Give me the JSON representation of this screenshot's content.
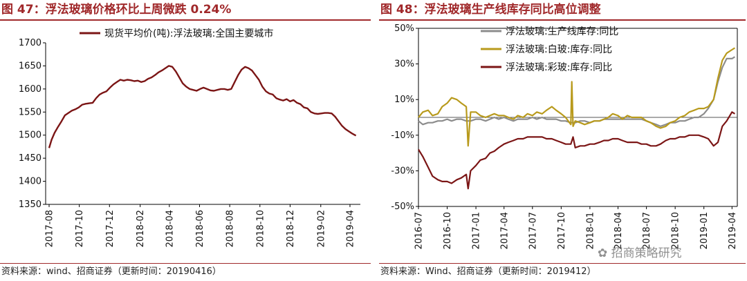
{
  "charts": {
    "left": {
      "title": "图 47：浮法玻璃价格环比上周微跌 0.24%",
      "source": "资料来源：wind、招商证券（更新时间：20190416）"
    },
    "right": {
      "title": "图 48：浮法玻璃生产线库存同比高位调整",
      "source": "资料来源：Wind、招商证券（更新时间：2019412）",
      "watermark": "招商策略研究"
    }
  },
  "chart_data": [
    {
      "type": "line",
      "title": "图 47：浮法玻璃价格环比上周微跌 0.24%",
      "ylim": [
        1350,
        1700
      ],
      "yticks": [
        1350,
        1400,
        1450,
        1500,
        1550,
        1600,
        1650,
        1700
      ],
      "xticks": [
        "2017-08",
        "2017-10",
        "2017-12",
        "2018-02",
        "2018-04",
        "2018-06",
        "2018-08",
        "2018-10",
        "2018-12",
        "2019-02",
        "2019-04"
      ],
      "grid": false,
      "legend": "top",
      "colors": {
        "series": "#7b1515"
      },
      "series": [
        {
          "name": "现货平均价(吨):浮法玻璃:全国主要城市",
          "x": [
            "2017-08-01",
            "2017-08-06",
            "2017-08-12",
            "2017-08-19",
            "2017-08-26",
            "2017-09-02",
            "2017-09-09",
            "2017-09-16",
            "2017-09-23",
            "2017-09-30",
            "2017-10-07",
            "2017-10-14",
            "2017-10-21",
            "2017-10-28",
            "2017-11-04",
            "2017-11-11",
            "2017-11-18",
            "2017-11-25",
            "2017-12-02",
            "2017-12-09",
            "2017-12-16",
            "2017-12-23",
            "2017-12-30",
            "2018-01-06",
            "2018-01-13",
            "2018-01-20",
            "2018-01-27",
            "2018-02-03",
            "2018-02-10",
            "2018-02-17",
            "2018-02-24",
            "2018-03-03",
            "2018-03-10",
            "2018-03-17",
            "2018-03-24",
            "2018-03-31",
            "2018-04-07",
            "2018-04-14",
            "2018-04-21",
            "2018-04-28",
            "2018-05-05",
            "2018-05-12",
            "2018-05-19",
            "2018-05-26",
            "2018-06-02",
            "2018-06-09",
            "2018-06-16",
            "2018-06-23",
            "2018-06-30",
            "2018-07-07",
            "2018-07-14",
            "2018-07-21",
            "2018-07-28",
            "2018-08-04",
            "2018-08-11",
            "2018-08-18",
            "2018-08-25",
            "2018-09-01",
            "2018-09-08",
            "2018-09-15",
            "2018-09-22",
            "2018-09-29",
            "2018-10-06",
            "2018-10-13",
            "2018-10-20",
            "2018-10-27",
            "2018-11-03",
            "2018-11-10",
            "2018-11-17",
            "2018-11-24",
            "2018-12-01",
            "2018-12-08",
            "2018-12-15",
            "2018-12-22",
            "2018-12-29",
            "2019-01-05",
            "2019-01-12",
            "2019-01-19",
            "2019-01-26",
            "2019-02-02",
            "2019-02-09",
            "2019-02-16",
            "2019-02-23",
            "2019-03-02",
            "2019-03-09",
            "2019-03-16",
            "2019-03-23",
            "2019-03-30",
            "2019-04-06",
            "2019-04-13"
          ],
          "values": [
            1472,
            1490,
            1505,
            1518,
            1530,
            1543,
            1548,
            1553,
            1556,
            1560,
            1566,
            1568,
            1569,
            1570,
            1580,
            1588,
            1592,
            1595,
            1603,
            1610,
            1615,
            1620,
            1618,
            1620,
            1619,
            1617,
            1618,
            1615,
            1617,
            1622,
            1625,
            1630,
            1636,
            1640,
            1645,
            1650,
            1648,
            1638,
            1625,
            1612,
            1605,
            1600,
            1598,
            1596,
            1600,
            1603,
            1600,
            1597,
            1596,
            1598,
            1600,
            1600,
            1598,
            1600,
            1615,
            1630,
            1642,
            1648,
            1645,
            1640,
            1630,
            1620,
            1605,
            1595,
            1590,
            1588,
            1580,
            1577,
            1575,
            1578,
            1573,
            1576,
            1570,
            1567,
            1560,
            1558,
            1550,
            1547,
            1546,
            1547,
            1548,
            1548,
            1547,
            1540,
            1530,
            1520,
            1513,
            1508,
            1503,
            1499
          ]
        }
      ]
    },
    {
      "type": "line",
      "title": "图 48：浮法玻璃生产线库存同比高位调整",
      "ylim": [
        -50,
        50
      ],
      "yticks": [
        -50,
        -30,
        -10,
        10,
        30,
        50
      ],
      "ytick_format": "percent",
      "xticks": [
        "2016-07",
        "2016-10",
        "2017-01",
        "2017-04",
        "2017-07",
        "2017-10",
        "2018-01",
        "2018-04",
        "2018-07",
        "2018-10",
        "2019-01",
        "2019-04"
      ],
      "reference_line": 0,
      "grid": false,
      "legend": "top",
      "colors": {
        "total": "#8c8c8c",
        "white": "#b89a1c",
        "color": "#7b1515"
      },
      "series": [
        {
          "name": "浮法玻璃:生产线库存:同比",
          "color_key": "total",
          "x": [
            "2016-07-01",
            "2016-07-15",
            "2016-08-01",
            "2016-08-15",
            "2016-09-01",
            "2016-09-15",
            "2016-10-01",
            "2016-10-15",
            "2016-11-01",
            "2016-11-15",
            "2016-12-01",
            "2016-12-15",
            "2017-01-01",
            "2017-01-15",
            "2017-02-01",
            "2017-02-15",
            "2017-03-01",
            "2017-03-15",
            "2017-04-01",
            "2017-04-15",
            "2017-05-01",
            "2017-05-15",
            "2017-06-01",
            "2017-06-15",
            "2017-07-01",
            "2017-07-15",
            "2017-08-01",
            "2017-08-15",
            "2017-09-01",
            "2017-09-15",
            "2017-10-01",
            "2017-10-15",
            "2017-11-01",
            "2017-11-15",
            "2017-12-01",
            "2017-12-15",
            "2018-01-01",
            "2018-01-15",
            "2018-02-01",
            "2018-02-15",
            "2018-03-01",
            "2018-03-15",
            "2018-04-01",
            "2018-04-15",
            "2018-05-01",
            "2018-05-15",
            "2018-06-01",
            "2018-06-15",
            "2018-07-01",
            "2018-07-15",
            "2018-08-01",
            "2018-08-15",
            "2018-09-01",
            "2018-09-15",
            "2018-10-01",
            "2018-10-15",
            "2018-11-01",
            "2018-11-15",
            "2018-12-01",
            "2018-12-15",
            "2019-01-01",
            "2019-01-15",
            "2019-02-01",
            "2019-02-15",
            "2019-03-01",
            "2019-03-15",
            "2019-04-01",
            "2019-04-10"
          ],
          "values": [
            -2,
            -4,
            -3,
            -3,
            -2,
            -2,
            -1,
            -2,
            -1,
            -1,
            -2,
            -2,
            -1,
            -1,
            -2,
            -1,
            0,
            -1,
            0,
            -1,
            -2,
            -1,
            -1,
            -1,
            0,
            -1,
            0,
            -1,
            -1,
            -1,
            -2,
            -2,
            -3,
            -3,
            -2,
            -2,
            -3,
            -2,
            -2,
            -1,
            -1,
            -1,
            -1,
            -1,
            -1,
            -1,
            -1,
            -1,
            -2,
            -3,
            -4,
            -5,
            -4,
            -3,
            -3,
            -2,
            -2,
            -1,
            0,
            0,
            2,
            5,
            10,
            20,
            28,
            33,
            33,
            34
          ]
        },
        {
          "name": "浮法玻璃:白玻:库存:同比",
          "color_key": "white",
          "x": [
            "2016-07-01",
            "2016-07-15",
            "2016-08-01",
            "2016-08-15",
            "2016-09-01",
            "2016-09-15",
            "2016-10-01",
            "2016-10-15",
            "2016-11-01",
            "2016-11-15",
            "2016-12-01",
            "2016-12-07",
            "2016-12-15",
            "2017-01-01",
            "2017-01-15",
            "2017-02-01",
            "2017-02-15",
            "2017-03-01",
            "2017-03-15",
            "2017-04-01",
            "2017-04-15",
            "2017-05-01",
            "2017-05-15",
            "2017-06-01",
            "2017-06-15",
            "2017-07-01",
            "2017-07-15",
            "2017-08-01",
            "2017-08-15",
            "2017-09-01",
            "2017-09-15",
            "2017-10-01",
            "2017-10-15",
            "2017-11-01",
            "2017-11-04",
            "2017-11-08",
            "2017-11-15",
            "2017-12-01",
            "2017-12-15",
            "2018-01-01",
            "2018-01-15",
            "2018-02-01",
            "2018-02-15",
            "2018-03-01",
            "2018-03-15",
            "2018-04-01",
            "2018-04-15",
            "2018-05-01",
            "2018-05-15",
            "2018-06-01",
            "2018-06-15",
            "2018-07-01",
            "2018-07-15",
            "2018-08-01",
            "2018-08-15",
            "2018-09-01",
            "2018-09-15",
            "2018-10-01",
            "2018-10-15",
            "2018-11-01",
            "2018-11-15",
            "2018-12-01",
            "2018-12-15",
            "2019-01-01",
            "2019-01-15",
            "2019-02-01",
            "2019-02-15",
            "2019-03-01",
            "2019-03-15",
            "2019-04-01",
            "2019-04-10"
          ],
          "values": [
            0,
            3,
            4,
            1,
            2,
            6,
            8,
            11,
            10,
            8,
            6,
            -16,
            3,
            3,
            1,
            0,
            1,
            2,
            1,
            1,
            0,
            -1,
            1,
            0,
            2,
            1,
            3,
            2,
            4,
            6,
            4,
            2,
            0,
            -4,
            20,
            -5,
            -2,
            -3,
            -4,
            -3,
            -2,
            -2,
            -1,
            0,
            2,
            1,
            -1,
            1,
            0,
            0,
            0,
            -2,
            -3,
            -5,
            -6,
            -5,
            -3,
            -2,
            0,
            1,
            3,
            4,
            5,
            5,
            6,
            10,
            22,
            32,
            36,
            38,
            39
          ]
        },
        {
          "name": "浮法玻璃:彩玻:库存:同比",
          "color_key": "color",
          "x": [
            "2016-07-01",
            "2016-07-15",
            "2016-08-01",
            "2016-08-15",
            "2016-09-01",
            "2016-09-15",
            "2016-10-01",
            "2016-10-15",
            "2016-11-01",
            "2016-11-15",
            "2016-12-01",
            "2016-12-07",
            "2016-12-15",
            "2017-01-01",
            "2017-01-15",
            "2017-02-01",
            "2017-02-15",
            "2017-03-01",
            "2017-03-15",
            "2017-04-01",
            "2017-04-15",
            "2017-05-01",
            "2017-05-15",
            "2017-06-01",
            "2017-06-15",
            "2017-07-01",
            "2017-07-15",
            "2017-08-01",
            "2017-08-15",
            "2017-09-01",
            "2017-09-15",
            "2017-10-01",
            "2017-10-15",
            "2017-11-01",
            "2017-11-08",
            "2017-11-15",
            "2017-12-01",
            "2017-12-15",
            "2018-01-01",
            "2018-01-15",
            "2018-02-01",
            "2018-02-15",
            "2018-03-01",
            "2018-03-15",
            "2018-04-01",
            "2018-04-15",
            "2018-05-01",
            "2018-05-15",
            "2018-06-01",
            "2018-06-15",
            "2018-07-01",
            "2018-07-15",
            "2018-08-01",
            "2018-08-15",
            "2018-09-01",
            "2018-09-15",
            "2018-10-01",
            "2018-10-15",
            "2018-11-01",
            "2018-11-15",
            "2018-12-01",
            "2018-12-15",
            "2019-01-01",
            "2019-01-15",
            "2019-02-01",
            "2019-02-15",
            "2019-03-01",
            "2019-03-15",
            "2019-04-01",
            "2019-04-10"
          ],
          "values": [
            -18,
            -22,
            -28,
            -33,
            -35,
            -36,
            -36,
            -37,
            -35,
            -34,
            -32,
            -40,
            -30,
            -27,
            -24,
            -23,
            -20,
            -19,
            -17,
            -15,
            -14,
            -13,
            -12,
            -12,
            -11,
            -11,
            -11,
            -11,
            -12,
            -12,
            -13,
            -14,
            -15,
            -15,
            -11,
            -17,
            -16,
            -16,
            -15,
            -15,
            -14,
            -13,
            -13,
            -12,
            -12,
            -13,
            -14,
            -14,
            -14,
            -15,
            -15,
            -16,
            -16,
            -15,
            -13,
            -12,
            -12,
            -11,
            -11,
            -10,
            -10,
            -10,
            -11,
            -12,
            -16,
            -14,
            -5,
            -2,
            3,
            2
          ]
        }
      ]
    }
  ]
}
